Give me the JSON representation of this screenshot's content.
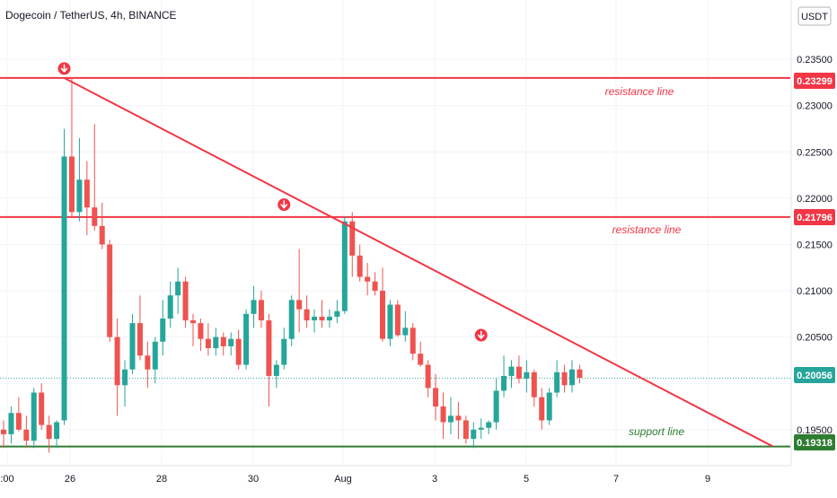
{
  "chart_data": {
    "type": "candlestick",
    "title": "Dogecoin / TetherUS, 4h, BINANCE",
    "currency": "USDT",
    "colors": {
      "up": "#26a69a",
      "down": "#ef5350",
      "line": "#f23645",
      "support": "#2e7d32",
      "grid": "#f0f3fa",
      "last": "#26a69a"
    },
    "x_ticks": [
      ":00",
      "26",
      "28",
      "30",
      "Aug",
      "3",
      "5",
      "7",
      "9"
    ],
    "y_ticks": [
      "0.23500",
      "0.23000",
      "0.22500",
      "0.22000",
      "0.21500",
      "0.21000",
      "0.20500",
      "0.19500"
    ],
    "ylim": [
      0.1912,
      0.2385
    ],
    "price_tags": {
      "resistance_1": "0.23299",
      "resistance_2": "0.21796",
      "last_price": "0.20056",
      "support": "0.19318"
    },
    "horizontal_lines": [
      {
        "name": "resistance-1",
        "value": 0.23299,
        "color": "#f23645"
      },
      {
        "name": "resistance-2",
        "value": 0.21796,
        "color": "#f23645"
      },
      {
        "name": "support",
        "value": 0.19318,
        "color": "#2e7d32"
      }
    ],
    "trend_line": {
      "from": {
        "index": 8,
        "value": 0.23299
      },
      "to": {
        "index": 101.5,
        "value": 0.19318
      }
    },
    "arrows": [
      {
        "index": 8,
        "value": 0.234
      },
      {
        "index": 37,
        "value": 0.2193
      },
      {
        "index": 63,
        "value": 0.2052
      }
    ],
    "annotations": [
      {
        "text": "resistance line",
        "color": "#f23645"
      },
      {
        "text": "resistance line",
        "color": "#f23645"
      },
      {
        "text": "support line",
        "color": "#2e7d32"
      }
    ],
    "candles": [
      [
        0.195,
        0.196,
        0.193,
        0.1945
      ],
      [
        0.1945,
        0.1975,
        0.1935,
        0.1968
      ],
      [
        0.1968,
        0.1985,
        0.1948,
        0.195
      ],
      [
        0.195,
        0.1965,
        0.193,
        0.1938
      ],
      [
        0.1938,
        0.1995,
        0.193,
        0.199
      ],
      [
        0.199,
        0.2,
        0.195,
        0.1955
      ],
      [
        0.1955,
        0.1965,
        0.1925,
        0.194
      ],
      [
        0.194,
        0.196,
        0.193,
        0.1958
      ],
      [
        0.196,
        0.2275,
        0.1955,
        0.2245
      ],
      [
        0.2245,
        0.233,
        0.218,
        0.2185
      ],
      [
        0.2185,
        0.2265,
        0.2175,
        0.222
      ],
      [
        0.222,
        0.224,
        0.216,
        0.219
      ],
      [
        0.219,
        0.228,
        0.2165,
        0.217
      ],
      [
        0.217,
        0.2195,
        0.2145,
        0.215
      ],
      [
        0.215,
        0.2155,
        0.2045,
        0.205
      ],
      [
        0.205,
        0.207,
        0.1965,
        0.1998
      ],
      [
        0.1998,
        0.2025,
        0.1975,
        0.2015
      ],
      [
        0.2015,
        0.2075,
        0.201,
        0.2065
      ],
      [
        0.2065,
        0.2095,
        0.2025,
        0.203
      ],
      [
        0.203,
        0.2045,
        0.1995,
        0.2015
      ],
      [
        0.2015,
        0.205,
        0.2,
        0.2045
      ],
      [
        0.2045,
        0.209,
        0.203,
        0.207
      ],
      [
        0.207,
        0.211,
        0.206,
        0.2095
      ],
      [
        0.2095,
        0.2125,
        0.2075,
        0.211
      ],
      [
        0.211,
        0.2115,
        0.206,
        0.2068
      ],
      [
        0.2068,
        0.2075,
        0.204,
        0.2065
      ],
      [
        0.2065,
        0.207,
        0.2035,
        0.2048
      ],
      [
        0.2048,
        0.2065,
        0.203,
        0.2038
      ],
      [
        0.2038,
        0.206,
        0.203,
        0.205
      ],
      [
        0.205,
        0.2055,
        0.203,
        0.204
      ],
      [
        0.204,
        0.2055,
        0.203,
        0.2048
      ],
      [
        0.2048,
        0.2058,
        0.2015,
        0.202
      ],
      [
        0.202,
        0.208,
        0.2015,
        0.2075
      ],
      [
        0.2075,
        0.2105,
        0.206,
        0.209
      ],
      [
        0.209,
        0.21,
        0.206,
        0.2068
      ],
      [
        0.2068,
        0.2075,
        0.1975,
        0.2008
      ],
      [
        0.2008,
        0.2025,
        0.1995,
        0.202
      ],
      [
        0.202,
        0.206,
        0.2015,
        0.2048
      ],
      [
        0.2048,
        0.2095,
        0.204,
        0.209
      ],
      [
        0.209,
        0.2145,
        0.2055,
        0.208
      ],
      [
        0.208,
        0.2095,
        0.206,
        0.2068
      ],
      [
        0.2068,
        0.208,
        0.2055,
        0.2072
      ],
      [
        0.2072,
        0.209,
        0.206,
        0.2068
      ],
      [
        0.2068,
        0.208,
        0.206,
        0.2072
      ],
      [
        0.2072,
        0.209,
        0.2065,
        0.2078
      ],
      [
        0.2078,
        0.218,
        0.2075,
        0.2175
      ],
      [
        0.2175,
        0.2185,
        0.2115,
        0.2138
      ],
      [
        0.2138,
        0.215,
        0.211,
        0.2115
      ],
      [
        0.2115,
        0.213,
        0.2095,
        0.211
      ],
      [
        0.211,
        0.212,
        0.2095,
        0.21
      ],
      [
        0.21,
        0.2125,
        0.2045,
        0.2048
      ],
      [
        0.2048,
        0.209,
        0.204,
        0.2085
      ],
      [
        0.2085,
        0.209,
        0.205,
        0.2052
      ],
      [
        0.2052,
        0.2078,
        0.2045,
        0.206
      ],
      [
        0.206,
        0.2065,
        0.2025,
        0.2032
      ],
      [
        0.2032,
        0.2045,
        0.2018,
        0.202
      ],
      [
        0.202,
        0.2025,
        0.1985,
        0.1995
      ],
      [
        0.1995,
        0.201,
        0.196,
        0.1975
      ],
      [
        0.1975,
        0.199,
        0.194,
        0.1958
      ],
      [
        0.1958,
        0.1985,
        0.1945,
        0.1965
      ],
      [
        0.1965,
        0.198,
        0.194,
        0.196
      ],
      [
        0.196,
        0.1965,
        0.1935,
        0.194
      ],
      [
        0.194,
        0.1958,
        0.193,
        0.195
      ],
      [
        0.195,
        0.1962,
        0.194,
        0.1952
      ],
      [
        0.1952,
        0.196,
        0.1945,
        0.1958
      ],
      [
        0.1958,
        0.2005,
        0.195,
        0.1992
      ],
      [
        0.1992,
        0.203,
        0.1985,
        0.2008
      ],
      [
        0.2008,
        0.2025,
        0.1995,
        0.2018
      ],
      [
        0.2018,
        0.203,
        0.2,
        0.2005
      ],
      [
        0.2005,
        0.2025,
        0.199,
        0.2012
      ],
      [
        0.2012,
        0.2015,
        0.1975,
        0.1985
      ],
      [
        0.1985,
        0.1995,
        0.195,
        0.196
      ],
      [
        0.196,
        0.1995,
        0.1955,
        0.199
      ],
      [
        0.199,
        0.2025,
        0.1985,
        0.2012
      ],
      [
        0.2012,
        0.202,
        0.199,
        0.1998
      ],
      [
        0.1998,
        0.2025,
        0.199,
        0.2015
      ],
      [
        0.2015,
        0.202,
        0.2,
        0.2006
      ]
    ]
  }
}
